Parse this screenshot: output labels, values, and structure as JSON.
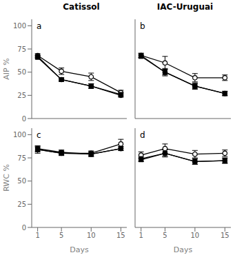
{
  "chart_data": [
    {
      "type": "line",
      "title": "Catissol",
      "annotations": [
        "a"
      ],
      "ylabel": "AIP %",
      "x": [
        1,
        5,
        10,
        15
      ],
      "xlim": [
        0,
        16
      ],
      "xticks": [
        1,
        5,
        10,
        15
      ],
      "ylim": [
        0,
        107
      ],
      "yticks": [
        0,
        25,
        50,
        75,
        100
      ],
      "grid": false,
      "tick_labels": "y",
      "series": [
        {
          "values": [
            68,
            51,
            45,
            28
          ],
          "errors": [
            2.0,
            3.5,
            4.0,
            2.5
          ],
          "marker": "open_circle",
          "color": "#000000"
        },
        {
          "values": [
            67,
            42,
            35,
            25
          ],
          "errors": [
            1.5,
            2.0,
            2.5,
            2.0
          ],
          "marker": "circle",
          "color": "#000000"
        },
        {
          "values": [
            66,
            42,
            35,
            26
          ],
          "errors": [
            1.5,
            1.5,
            2.5,
            2.0
          ],
          "marker": "square",
          "color": "#000000"
        }
      ]
    },
    {
      "type": "line",
      "title": "IAC-Uruguai",
      "annotations": [
        "b"
      ],
      "x": [
        1,
        5,
        10,
        15
      ],
      "xlim": [
        0,
        16
      ],
      "xticks": [
        1,
        5,
        10,
        15
      ],
      "ylim": [
        0,
        107
      ],
      "yticks": [
        0,
        25,
        50,
        75,
        100
      ],
      "grid": false,
      "tick_labels": false,
      "series": [
        {
          "values": [
            68,
            60,
            44,
            44
          ],
          "errors": [
            2.5,
            7.0,
            4.5,
            3.0
          ],
          "marker": "open_circle",
          "color": "#000000"
        },
        {
          "values": [
            68,
            50,
            35,
            27
          ],
          "errors": [
            2.0,
            4.0,
            3.5,
            2.5
          ],
          "marker": "circle",
          "color": "#000000"
        },
        {
          "values": [
            67,
            50,
            35,
            27
          ],
          "errors": [
            1.5,
            3.0,
            2.5,
            2.0
          ],
          "marker": "square",
          "color": "#000000"
        }
      ]
    },
    {
      "type": "line",
      "annotations": [
        "c"
      ],
      "ylabel": "RWC %",
      "xlabel": "Days",
      "x": [
        1,
        5,
        10,
        15
      ],
      "xlim": [
        0,
        16
      ],
      "xticks": [
        1,
        5,
        10,
        15
      ],
      "ylim": [
        0,
        107
      ],
      "yticks": [
        0,
        25,
        50,
        75,
        100
      ],
      "grid": false,
      "series": [
        {
          "values": [
            84,
            80,
            80,
            90
          ],
          "errors": [
            4.0,
            2.5,
            2.5,
            5.0
          ],
          "marker": "open_circle",
          "color": "#000000"
        },
        {
          "values": [
            85,
            81,
            79,
            85
          ],
          "errors": [
            2.5,
            2.5,
            2.5,
            2.0
          ],
          "marker": "circle",
          "color": "#000000"
        },
        {
          "values": [
            84,
            80,
            79,
            85
          ],
          "errors": [
            2.5,
            2.0,
            2.5,
            2.0
          ],
          "marker": "square",
          "color": "#000000"
        }
      ]
    },
    {
      "type": "line",
      "annotations": [
        "d"
      ],
      "xlabel": "Days",
      "x": [
        1,
        5,
        10,
        15
      ],
      "xlim": [
        0,
        16
      ],
      "xticks": [
        1,
        5,
        10,
        15
      ],
      "ylim": [
        0,
        107
      ],
      "yticks": [
        0,
        25,
        50,
        75,
        100
      ],
      "grid": false,
      "tick_labels": "x",
      "series": [
        {
          "values": [
            78,
            85,
            79,
            80
          ],
          "errors": [
            3.5,
            5.0,
            4.0,
            3.5
          ],
          "marker": "open_circle",
          "color": "#000000"
        },
        {
          "values": [
            74,
            80,
            71,
            72
          ],
          "errors": [
            2.5,
            4.0,
            3.0,
            3.0
          ],
          "marker": "circle",
          "color": "#000000"
        },
        {
          "values": [
            73,
            80,
            71,
            72
          ],
          "errors": [
            2.0,
            3.5,
            3.0,
            2.5
          ],
          "marker": "square",
          "color": "#000000"
        }
      ]
    }
  ]
}
